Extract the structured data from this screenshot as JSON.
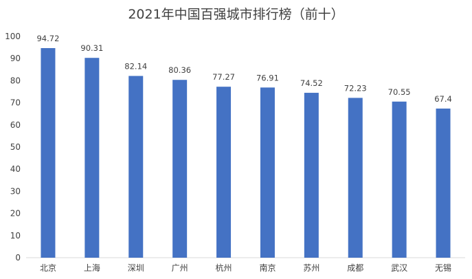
{
  "chart_data": {
    "type": "bar",
    "title": "2021年中国百强城市排行榜（前十）",
    "categories": [
      "北京",
      "上海",
      "深圳",
      "广州",
      "杭州",
      "南京",
      "苏州",
      "成都",
      "武汉",
      "无锡"
    ],
    "values": [
      94.72,
      90.31,
      82.14,
      80.36,
      77.27,
      76.91,
      74.52,
      72.23,
      70.55,
      67.4
    ],
    "data_labels": [
      "94.72",
      "90.31",
      "82.14",
      "80.36",
      "77.27",
      "76.91",
      "74.52",
      "72.23",
      "70.55",
      "67.4"
    ],
    "ylim": [
      0,
      100
    ],
    "yticks": [
      0,
      10,
      20,
      30,
      40,
      50,
      60,
      70,
      80,
      90,
      100
    ],
    "ytick_labels": [
      "0",
      "10",
      "20",
      "30",
      "40",
      "50",
      "60",
      "70",
      "80",
      "90",
      "100"
    ],
    "grid": false,
    "legend": "none",
    "bar_color": "#4472c4",
    "axis_color": "#d9d9d9",
    "text_color": "#404040"
  }
}
